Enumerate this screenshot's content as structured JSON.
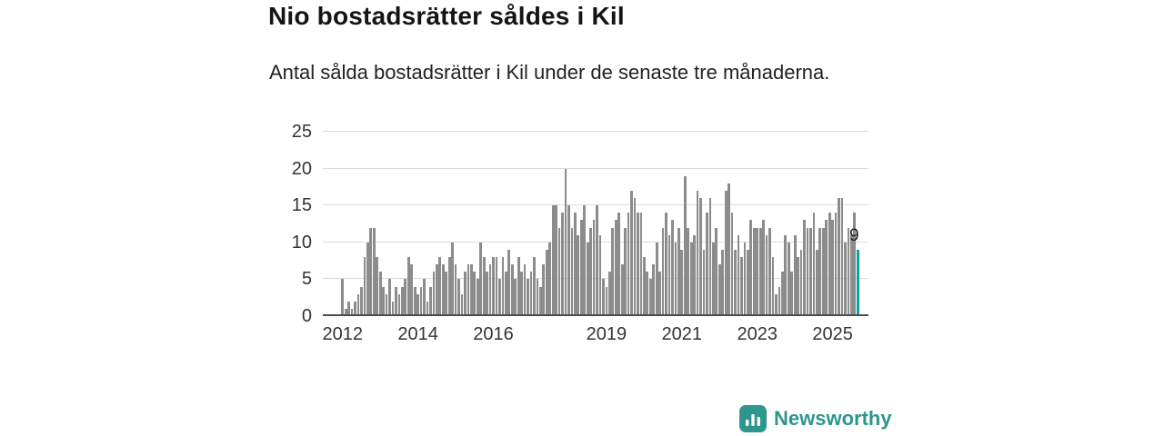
{
  "header": {
    "title": "Nio bostadsrätter såldes i Kil",
    "subtitle": "Antal sålda bostadsrätter i Kil under de senaste tre månaderna."
  },
  "chart_data": {
    "type": "bar",
    "title": "Nio bostadsrätter såldes i Kil",
    "subtitle": "Antal sålda bostadsrätter i Kil under de senaste tre månaderna.",
    "x_start": "2012-01",
    "x_unit": "month",
    "values": [
      5,
      1,
      2,
      1,
      2,
      3,
      4,
      8,
      10,
      12,
      12,
      8,
      6,
      4,
      3,
      5,
      2,
      4,
      3,
      4,
      5,
      8,
      7,
      4,
      3,
      4,
      5,
      2,
      4,
      6,
      7,
      8,
      7,
      6,
      8,
      10,
      7,
      5,
      3,
      6,
      7,
      7,
      6,
      5,
      10,
      8,
      6,
      7,
      8,
      8,
      5,
      8,
      6,
      9,
      7,
      5,
      8,
      6,
      7,
      5,
      6,
      8,
      5,
      4,
      7,
      9,
      10,
      15,
      15,
      12,
      14,
      20,
      15,
      12,
      14,
      11,
      13,
      15,
      10,
      12,
      13,
      15,
      11,
      5,
      4,
      6,
      12,
      13,
      14,
      7,
      12,
      14,
      17,
      16,
      14,
      14,
      8,
      6,
      5,
      7,
      10,
      6,
      12,
      14,
      11,
      13,
      10,
      12,
      9,
      19,
      12,
      10,
      11,
      17,
      16,
      9,
      14,
      16,
      10,
      12,
      7,
      9,
      17,
      18,
      14,
      9,
      11,
      8,
      10,
      9,
      13,
      12,
      12,
      12,
      13,
      11,
      12,
      8,
      3,
      4,
      6,
      11,
      10,
      6,
      11,
      8,
      9,
      13,
      12,
      12,
      14,
      9,
      12,
      12,
      13,
      14,
      13,
      14,
      16,
      16,
      10,
      12,
      11,
      14,
      9
    ],
    "highlight_last": true,
    "annotation": {
      "text": "9",
      "value": 9
    },
    "yticks": [
      0,
      5,
      10,
      15,
      20,
      25
    ],
    "ylim": [
      0,
      25
    ],
    "xticks": [
      {
        "label": "2012",
        "year": 2012
      },
      {
        "label": "2014",
        "year": 2014
      },
      {
        "label": "2016",
        "year": 2016
      },
      {
        "label": "2019",
        "year": 2019
      },
      {
        "label": "2021",
        "year": 2021
      },
      {
        "label": "2023",
        "year": 2023
      },
      {
        "label": "2025",
        "year": 2025
      }
    ],
    "grid": true,
    "legend": "none",
    "colors": {
      "bar": "#8c8c8c",
      "highlight": "#0aa2a0",
      "gridline": "#dcdcdc",
      "axis": "#4d4d4d"
    }
  },
  "footer": {
    "brand": "Newsworthy",
    "brand_color": "#2e968c",
    "logo_icon": "bar-chart-logo-icon"
  }
}
